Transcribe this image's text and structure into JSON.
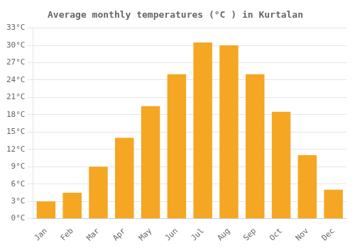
{
  "chart_data": {
    "type": "bar",
    "title": "Average monthly temperatures (°C ) in Kurtalan",
    "categories": [
      "Jan",
      "Feb",
      "Mar",
      "Apr",
      "May",
      "Jun",
      "Jul",
      "Aug",
      "Sep",
      "Oct",
      "Nov",
      "Dec"
    ],
    "values": [
      3,
      4.5,
      9,
      14,
      19.5,
      25,
      30.5,
      30,
      25,
      18.5,
      11,
      5
    ],
    "color": "#F5A623",
    "ylim": [
      0,
      33
    ],
    "yticks": [
      {
        "value": 0,
        "label": "0°C"
      },
      {
        "value": 3,
        "label": "3°C"
      },
      {
        "value": 6,
        "label": "6°C"
      },
      {
        "value": 9,
        "label": "9°C"
      },
      {
        "value": 12,
        "label": "12°C"
      },
      {
        "value": 15,
        "label": "15°C"
      },
      {
        "value": 18,
        "label": "18°C"
      },
      {
        "value": 21,
        "label": "21°C"
      },
      {
        "value": 24,
        "label": "24°C"
      },
      {
        "value": 27,
        "label": "27°C"
      },
      {
        "value": 30,
        "label": "30°C"
      },
      {
        "value": 33,
        "label": "33°C"
      }
    ],
    "grid": true
  }
}
